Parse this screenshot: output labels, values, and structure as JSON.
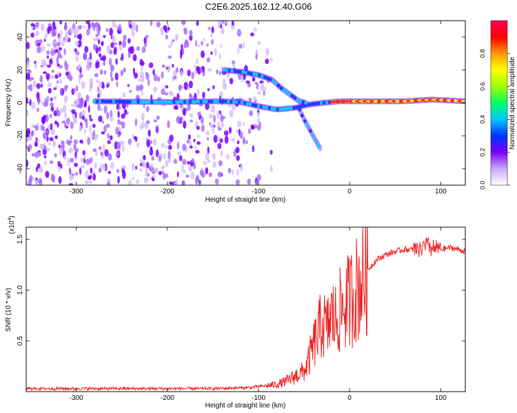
{
  "title": "C2E6.2025.162.12.40.G06",
  "colorbar": {
    "label": "Normalized spectral amplitude",
    "ticks": [
      "0.0",
      "0.2",
      "0.4",
      "0.6",
      "0.8"
    ],
    "tick_values": [
      0,
      0.2,
      0.4,
      0.6,
      0.8
    ],
    "colors": [
      "#ffffff",
      "#c9a8ff",
      "#7a00ff",
      "#0033ff",
      "#00c8ff",
      "#00ff66",
      "#a0ff00",
      "#ffff00",
      "#ff9900",
      "#ff0000",
      "#ff0055"
    ]
  },
  "chart_data": [
    {
      "type": "heatmap",
      "title": "",
      "xlabel": "Height of straight line (km)",
      "ylabel": "Frequency (Hz)",
      "xlim": [
        -355,
        127
      ],
      "ylim": [
        -50,
        50
      ],
      "xticks": [
        -300,
        -200,
        -100,
        0,
        100
      ],
      "xtick_labels": [
        "-300",
        "-200",
        "-100",
        "0",
        "100"
      ],
      "yticks": [
        -40,
        -20,
        0,
        20,
        40
      ],
      "ytick_labels": [
        "-40",
        "-20",
        "0",
        "20",
        "40"
      ],
      "noise_region_x": [
        -355,
        -85
      ],
      "tracks": [
        {
          "points": [
            [
              -280,
              1
            ],
            [
              -200,
              0.5
            ],
            [
              -140,
              1
            ],
            [
              -120,
              0.5
            ],
            [
              -100,
              -2
            ],
            [
              -80,
              -4
            ],
            [
              -60,
              -3
            ],
            [
              -45,
              -1
            ],
            [
              -30,
              0
            ],
            [
              -10,
              1
            ],
            [
              20,
              1
            ],
            [
              60,
              1
            ],
            [
              90,
              2
            ],
            [
              127,
              1
            ]
          ]
        },
        {
          "points": [
            [
              -138,
              20
            ],
            [
              -120,
              19
            ],
            [
              -100,
              17
            ],
            [
              -85,
              14
            ],
            [
              -75,
              9
            ],
            [
              -65,
              5
            ],
            [
              -55,
              1
            ],
            [
              -48,
              0
            ]
          ]
        },
        {
          "points": [
            [
              -55,
              -4
            ],
            [
              -50,
              -10
            ],
            [
              -45,
              -15
            ],
            [
              -40,
              -20
            ],
            [
              -32,
              -28
            ]
          ]
        }
      ]
    },
    {
      "type": "line",
      "title": "",
      "xlabel": "Height of straight line (km)",
      "ylabel": "SNR (10 * v/v)",
      "yscale_label": "(x10",
      "yscale_exp": "4",
      "xlim": [
        -355,
        127
      ],
      "ylim": [
        0,
        1.62
      ],
      "xticks": [
        -300,
        -200,
        -100,
        0,
        100
      ],
      "xtick_labels": [
        "-300",
        "-200",
        "-100",
        "0",
        "100"
      ],
      "yticks": [
        0.5,
        1.0,
        1.5
      ],
      "ytick_labels": [
        "0.5",
        "1.0",
        "1.5"
      ],
      "series": [
        {
          "color": "#ee2222",
          "x": [
            -355,
            -250,
            -150,
            -110,
            -100,
            -80,
            -70,
            -60,
            -50,
            -45,
            -40,
            -35,
            -30,
            -25,
            -20,
            -15,
            -10,
            -5,
            0,
            10,
            20,
            30,
            40,
            50,
            60,
            70,
            80,
            85,
            90,
            95,
            100,
            110,
            120,
            127
          ],
          "y": [
            0.03,
            0.03,
            0.03,
            0.04,
            0.05,
            0.07,
            0.1,
            0.15,
            0.2,
            0.3,
            0.45,
            0.55,
            0.7,
            0.6,
            0.75,
            0.7,
            0.8,
            0.85,
            0.9,
            1.05,
            1.2,
            1.3,
            1.35,
            1.38,
            1.4,
            1.4,
            1.42,
            1.45,
            1.4,
            1.42,
            1.4,
            1.42,
            1.4,
            1.38
          ]
        }
      ]
    }
  ]
}
